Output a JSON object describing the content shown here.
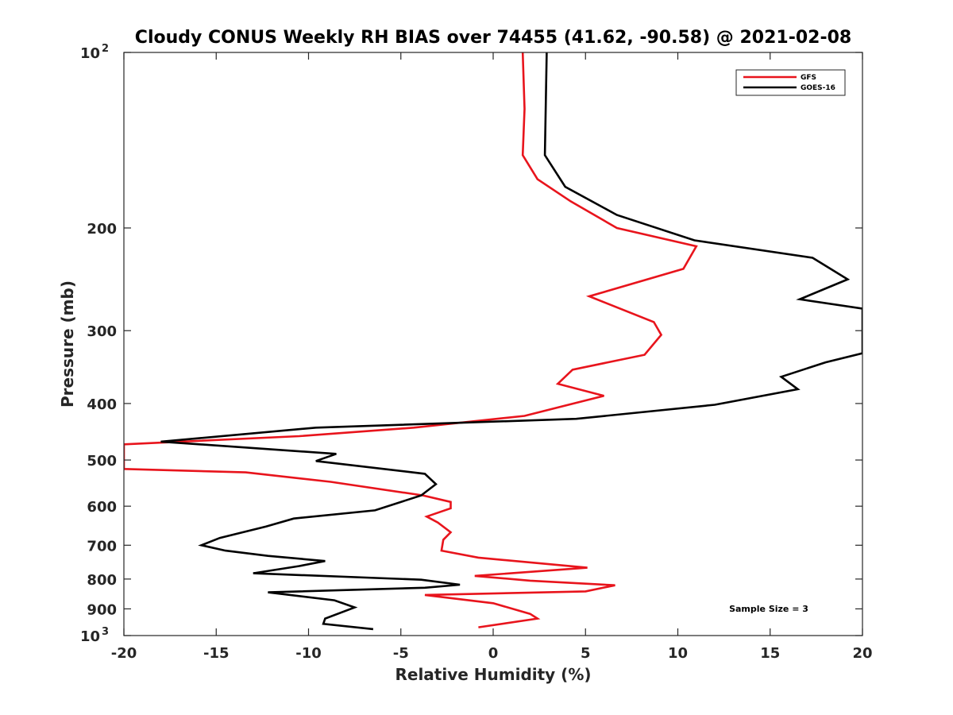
{
  "chart_data": {
    "type": "line",
    "title": "Cloudy CONUS Weekly RH BIAS over 74455 (41.62, -90.58) @ 2021-02-08",
    "xlabel": "Relative Humidity (%)",
    "ylabel": "Pressure (mb)",
    "xlim": [
      -20,
      20
    ],
    "ylim": [
      100,
      1000
    ],
    "yscale": "log",
    "y_reversed": true,
    "xticks": [
      -20,
      -15,
      -10,
      -5,
      0,
      5,
      10,
      15,
      20
    ],
    "yticks": [
      100,
      200,
      300,
      400,
      500,
      600,
      700,
      800,
      900,
      1000
    ],
    "ytick_labels": {
      "200": "200",
      "300": "300",
      "400": "400",
      "500": "500",
      "600": "600",
      "700": "700",
      "800": "800",
      "900": "900"
    },
    "ytick_exp": {
      "base": "10",
      "top_exp": "2",
      "bottom_exp": "3"
    },
    "grid": false,
    "legend_placement": "top-right",
    "annotation": "Sample Size = 3",
    "series": [
      {
        "name": "GFS",
        "color": "#e8141c",
        "points": [
          [
            1.6,
            100
          ],
          [
            1.7,
            125
          ],
          [
            1.6,
            150
          ],
          [
            2.4,
            165
          ],
          [
            4.2,
            180
          ],
          [
            6.7,
            200
          ],
          [
            11.0,
            215
          ],
          [
            10.3,
            235
          ],
          [
            5.2,
            262
          ],
          [
            8.7,
            290
          ],
          [
            9.1,
            305
          ],
          [
            8.2,
            330
          ],
          [
            4.3,
            350
          ],
          [
            3.5,
            370
          ],
          [
            6.0,
            388
          ],
          [
            1.7,
            420
          ],
          [
            -4.3,
            440
          ],
          [
            -10.5,
            455
          ],
          [
            -20,
            470
          ],
          [
            -20,
            518
          ],
          [
            -13.4,
            525
          ],
          [
            -8.8,
            545
          ],
          [
            -3.8,
            575
          ],
          [
            -2.3,
            590
          ],
          [
            -2.3,
            605
          ],
          [
            -3.6,
            625
          ],
          [
            -3.0,
            640
          ],
          [
            -2.3,
            665
          ],
          [
            -2.7,
            685
          ],
          [
            -2.8,
            715
          ],
          [
            -0.8,
            735
          ],
          [
            5.1,
            765
          ],
          [
            -1.0,
            790
          ],
          [
            2.0,
            805
          ],
          [
            6.6,
            820
          ],
          [
            5.0,
            840
          ],
          [
            -3.7,
            852
          ],
          [
            0.0,
            880
          ],
          [
            2.0,
            918
          ],
          [
            2.4,
            935
          ],
          [
            -0.8,
            968
          ]
        ]
      },
      {
        "name": "GOES-16",
        "color": "#000000",
        "points": [
          [
            2.9,
            100
          ],
          [
            2.8,
            150
          ],
          [
            3.9,
            170
          ],
          [
            6.7,
            190
          ],
          [
            10.9,
            210
          ],
          [
            17.3,
            225
          ],
          [
            19.2,
            245
          ],
          [
            16.6,
            265
          ],
          [
            20,
            275
          ],
          [
            20,
            328
          ],
          [
            18.0,
            340
          ],
          [
            15.6,
            360
          ],
          [
            16.5,
            378
          ],
          [
            12.0,
            402
          ],
          [
            4.5,
            425
          ],
          [
            -9.6,
            440
          ],
          [
            -18.0,
            465
          ],
          [
            -8.5,
            488
          ],
          [
            -9.6,
            502
          ],
          [
            -3.7,
            528
          ],
          [
            -3.1,
            550
          ],
          [
            -3.9,
            575
          ],
          [
            -6.4,
            610
          ],
          [
            -10.8,
            630
          ],
          [
            -12.3,
            650
          ],
          [
            -14.8,
            680
          ],
          [
            -15.8,
            700
          ],
          [
            -14.5,
            715
          ],
          [
            -12.2,
            730
          ],
          [
            -9.1,
            745
          ],
          [
            -10.5,
            760
          ],
          [
            -13.0,
            782
          ],
          [
            -3.9,
            802
          ],
          [
            -1.8,
            818
          ],
          [
            -3.7,
            828
          ],
          [
            -12.2,
            843
          ],
          [
            -8.6,
            870
          ],
          [
            -7.5,
            895
          ],
          [
            -9.1,
            935
          ],
          [
            -9.2,
            955
          ],
          [
            -6.5,
            975
          ]
        ]
      }
    ]
  },
  "legend": {
    "items": [
      {
        "label": "GFS",
        "color": "#e8141c"
      },
      {
        "label": "GOES-16",
        "color": "#000000"
      }
    ]
  }
}
